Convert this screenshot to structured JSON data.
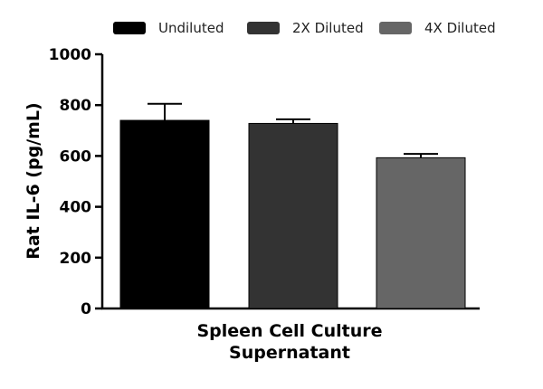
{
  "chart_data": {
    "type": "bar",
    "categories": [
      "Spleen Cell Culture Supernatant"
    ],
    "xlabel_lines": [
      "Spleen Cell Culture",
      "Supernatant"
    ],
    "ylabel": "Rat IL-6 (pg/mL)",
    "ylim": [
      0,
      1000
    ],
    "yticks": [
      0,
      200,
      400,
      600,
      800,
      1000
    ],
    "legend_position": "top",
    "series": [
      {
        "name": "Undiluted",
        "values": [
          740
        ],
        "error": [
          65
        ],
        "color": "#000000"
      },
      {
        "name": "2X Diluted",
        "values": [
          728
        ],
        "error": [
          16
        ],
        "color": "#333333"
      },
      {
        "name": "4X Diluted",
        "values": [
          593
        ],
        "error": [
          15
        ],
        "color": "#666666"
      }
    ]
  }
}
